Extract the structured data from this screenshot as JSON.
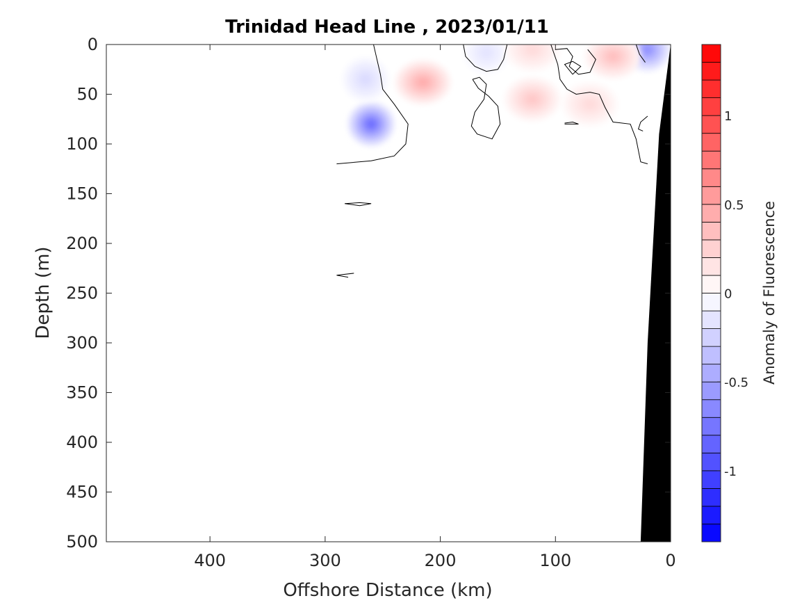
{
  "chart_data": {
    "type": "heatmap",
    "title": "Trinidad Head Line , 2023/01/11",
    "xlabel": "Offshore Distance (km)",
    "ylabel": "Depth (m)",
    "x_axis": {
      "range": [
        490,
        0
      ],
      "reversed": true,
      "ticks": [
        400,
        300,
        200,
        100,
        0
      ]
    },
    "y_axis": {
      "range": [
        0,
        500
      ],
      "reversed": true,
      "ticks": [
        0,
        50,
        100,
        150,
        200,
        250,
        300,
        350,
        400,
        450,
        500
      ]
    },
    "colorbar": {
      "label": "Anomaly of Fluorescence",
      "range": [
        -1.4,
        1.4
      ],
      "step": 0.1,
      "ticks": [
        {
          "value": -1,
          "label": "-1"
        },
        {
          "value": -0.5,
          "label": "-0.5"
        },
        {
          "value": 0,
          "label": "0"
        },
        {
          "value": 0.5,
          "label": "0.5"
        },
        {
          "value": 1,
          "label": "1"
        }
      ],
      "colormap": "blue-white-red"
    },
    "anomaly_features": [
      {
        "sign": "negative",
        "x": 260,
        "y": 80,
        "peak": -0.8
      },
      {
        "sign": "negative",
        "x": 265,
        "y": 35,
        "peak": -0.2
      },
      {
        "sign": "negative",
        "x": 20,
        "y": 5,
        "peak": -0.6
      },
      {
        "sign": "negative",
        "x": 160,
        "y": 8,
        "peak": -0.15
      },
      {
        "sign": "positive",
        "x": 215,
        "y": 38,
        "peak": 0.45
      },
      {
        "sign": "positive",
        "x": 120,
        "y": 55,
        "peak": 0.3
      },
      {
        "sign": "positive",
        "x": 50,
        "y": 12,
        "peak": 0.35
      },
      {
        "sign": "positive",
        "x": 120,
        "y": 5,
        "peak": 0.2
      },
      {
        "sign": "positive",
        "x": 70,
        "y": 60,
        "peak": 0.2
      }
    ],
    "bathymetry": {
      "color": "#000000",
      "profile": [
        {
          "x": 0,
          "y": 0
        },
        {
          "x": 10,
          "y": 90
        },
        {
          "x": 20,
          "y": 300
        },
        {
          "x": 26,
          "y": 500
        }
      ]
    },
    "zero_contours": [
      [
        [
          290,
          120
        ],
        [
          260,
          117
        ],
        [
          240,
          112
        ],
        [
          230,
          100
        ],
        [
          228,
          80
        ],
        [
          240,
          60
        ],
        [
          250,
          45
        ],
        [
          252,
          30
        ],
        [
          256,
          10
        ],
        [
          258,
          0
        ]
      ],
      [
        [
          180,
          0
        ],
        [
          178,
          12
        ],
        [
          170,
          22
        ],
        [
          160,
          27
        ],
        [
          150,
          25
        ],
        [
          145,
          15
        ],
        [
          142,
          0
        ]
      ],
      [
        [
          172,
          35
        ],
        [
          166,
          33
        ],
        [
          160,
          40
        ],
        [
          162,
          55
        ],
        [
          170,
          68
        ],
        [
          173,
          82
        ],
        [
          168,
          90
        ],
        [
          155,
          95
        ],
        [
          148,
          80
        ],
        [
          150,
          62
        ],
        [
          158,
          52
        ],
        [
          167,
          44
        ],
        [
          172,
          35
        ]
      ],
      [
        [
          104,
          0
        ],
        [
          98,
          20
        ],
        [
          96,
          35
        ],
        [
          90,
          45
        ],
        [
          82,
          50
        ],
        [
          70,
          48
        ],
        [
          62,
          50
        ],
        [
          57,
          63
        ],
        [
          50,
          78
        ],
        [
          35,
          80
        ],
        [
          30,
          95
        ],
        [
          26,
          118
        ],
        [
          20,
          120
        ]
      ],
      [
        [
          100,
          5
        ],
        [
          90,
          4
        ],
        [
          85,
          12
        ],
        [
          88,
          22
        ],
        [
          80,
          30
        ],
        [
          70,
          28
        ],
        [
          65,
          15
        ],
        [
          72,
          5
        ]
      ],
      [
        [
          85,
          30
        ],
        [
          78,
          22
        ],
        [
          85,
          17
        ],
        [
          92,
          20
        ],
        [
          85,
          30
        ]
      ],
      [
        [
          20,
          72
        ],
        [
          26,
          78
        ],
        [
          28,
          85
        ],
        [
          24,
          87
        ]
      ],
      [
        [
          92,
          79
        ],
        [
          85,
          78
        ],
        [
          80,
          80
        ],
        [
          92,
          80
        ]
      ],
      [
        [
          283,
          160
        ],
        [
          270,
          159
        ],
        [
          260,
          160
        ],
        [
          270,
          162
        ],
        [
          283,
          160
        ]
      ],
      [
        [
          275,
          230
        ],
        [
          290,
          232
        ],
        [
          280,
          234
        ]
      ],
      [
        [
          30,
          0
        ],
        [
          27,
          10
        ],
        [
          22,
          18
        ]
      ]
    ]
  }
}
